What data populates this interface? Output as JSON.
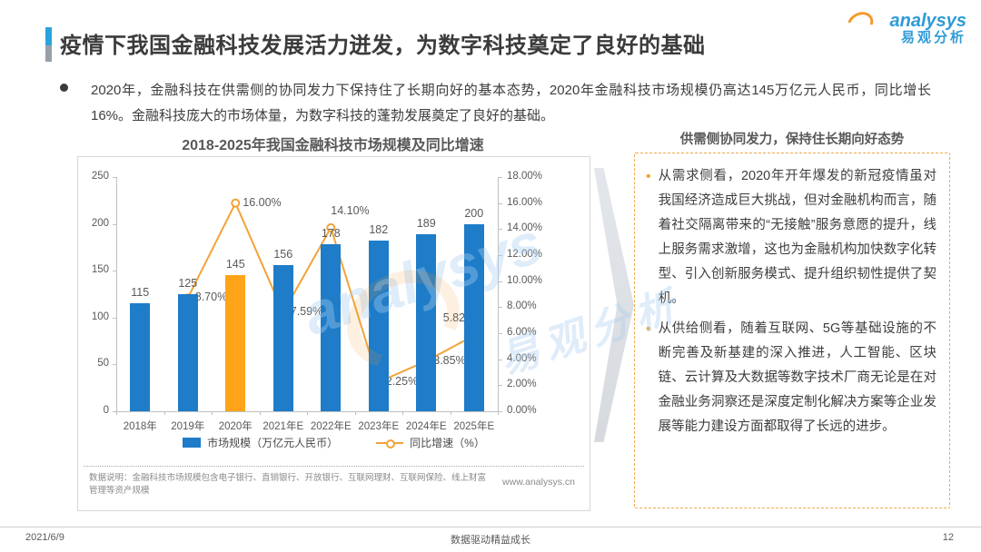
{
  "header": {
    "title": "疫情下我国金融科技发展活力迸发，为数字科技奠定了良好的基础",
    "logo_brand": "analysys",
    "logo_cn": "易观分析"
  },
  "intro": {
    "bullet_text": "2020年，金融科技在供需侧的协同发力下保持住了长期向好的基本态势，2020年金融科技市场规模仍高达145万亿元人民币，同比增长16%。金融科技庞大的市场体量，为数字科技的蓬勃发展奠定了良好的基础。"
  },
  "chart_data": {
    "type": "bar",
    "title": "2018-2025年我国金融科技市场规模及同比增速",
    "categories": [
      "2018年",
      "2019年",
      "2020年",
      "2021年E",
      "2022年E",
      "2023年E",
      "2024年E",
      "2025年E"
    ],
    "series": [
      {
        "name": "市场规模（万亿元人民币）",
        "type": "bar",
        "values": [
          115,
          125,
          145,
          156,
          178,
          182,
          189,
          200
        ],
        "color": "#1e7cc8",
        "highlight_index": 2,
        "highlight_color": "#ffa418"
      },
      {
        "name": "同比增速（%）",
        "type": "line",
        "values": [
          null,
          8.7,
          16.0,
          7.59,
          14.1,
          2.25,
          3.85,
          5.82
        ],
        "labels": [
          null,
          "8.70%",
          "16.00%",
          "7.59%",
          "14.10%",
          "2.25%",
          "3.85%",
          "5.82%"
        ],
        "color": "#f2a33a"
      }
    ],
    "left_axis": {
      "min": 0,
      "max": 250,
      "ticks": [
        "0",
        "50",
        "100",
        "150",
        "200",
        "250"
      ]
    },
    "right_axis": {
      "min": 0,
      "max": 18,
      "ticks": [
        "0.00%",
        "2.00%",
        "4.00%",
        "6.00%",
        "8.00%",
        "10.00%",
        "12.00%",
        "14.00%",
        "16.00%",
        "18.00%"
      ]
    },
    "grid": false,
    "legend_position": "bottom",
    "note": "数据说明：金融科技市场规模包含电子银行、直销银行、开放银行、互联网理财、互联网保险、线上财富管理等资产规模",
    "source_url": "www.analysys.cn"
  },
  "panel": {
    "title": "供需侧协同发力，保持住长期向好态势",
    "bullets": [
      "从需求侧看，2020年开年爆发的新冠疫情虽对我国经济造成巨大挑战，但对金融机构而言，随着社交隔离带来的“无接触”服务意愿的提升，线上服务需求激增，这也为金融机构加快数字化转型、引入创新服务模式、提升组织韧性提供了契机。",
      "从供给侧看，随着互联网、5G等基础设施的不断完善及新基建的深入推进，人工智能、区块链、云计算及大数据等数字技术厂商无论是在对金融业务洞察还是深度定制化解决方案等企业发展等能力建设方面都取得了长远的进步。"
    ]
  },
  "watermark": {
    "text_en": "analysys",
    "text_cn": "易观分析"
  },
  "footer": {
    "date": "2021/6/9",
    "motto": "数据驱动精益成长",
    "page": "12"
  }
}
